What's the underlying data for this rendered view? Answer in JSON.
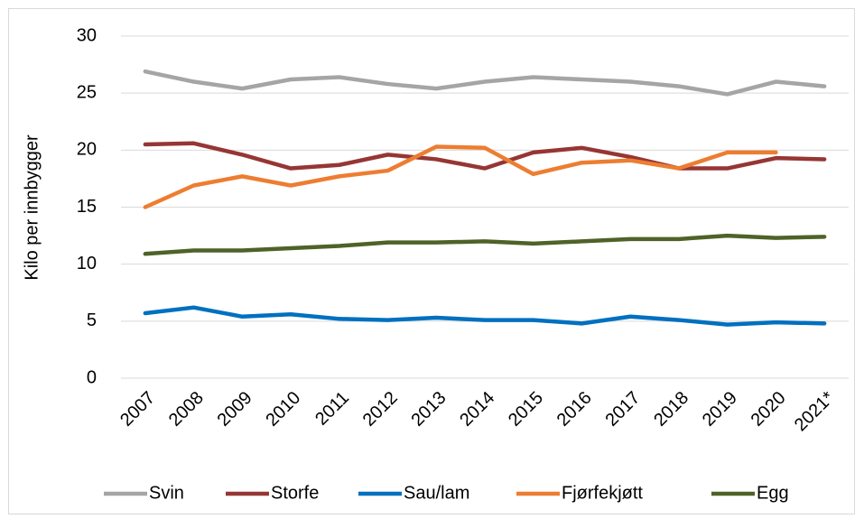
{
  "chart_data": {
    "type": "line",
    "y_label": "Kilo per innbygger",
    "categories": [
      "2007",
      "2008",
      "2009",
      "2010",
      "2011",
      "2012",
      "2013",
      "2014",
      "2015",
      "2016",
      "2017",
      "2018",
      "2019",
      "2020",
      "2021*"
    ],
    "series": [
      {
        "name": "Svin",
        "color": "#a5a5a5",
        "values": [
          26.9,
          26.0,
          25.4,
          26.2,
          26.4,
          25.8,
          25.4,
          26.0,
          26.4,
          26.2,
          26.0,
          25.6,
          24.9,
          26.0,
          25.6
        ]
      },
      {
        "name": "Storfe",
        "color": "#963634",
        "values": [
          20.5,
          20.6,
          19.6,
          18.4,
          18.7,
          19.6,
          19.2,
          18.4,
          19.8,
          20.2,
          19.4,
          18.4,
          18.4,
          19.3,
          19.2
        ]
      },
      {
        "name": "Sau/lam",
        "color": "#0070c0",
        "values": [
          5.7,
          6.2,
          5.4,
          5.6,
          5.2,
          5.1,
          5.3,
          5.1,
          5.1,
          4.8,
          5.4,
          5.1,
          4.7,
          4.9,
          4.8
        ]
      },
      {
        "name": "Fjørfekjøtt",
        "color": "#ed7d31",
        "values": [
          15.0,
          16.9,
          17.7,
          16.9,
          17.7,
          18.2,
          20.3,
          20.2,
          17.9,
          18.9,
          19.1,
          18.4,
          19.8,
          19.8,
          null
        ]
      },
      {
        "name": "Egg",
        "color": "#4f6228",
        "values": [
          10.9,
          11.2,
          11.2,
          11.4,
          11.6,
          11.9,
          11.9,
          12.0,
          11.8,
          12.0,
          12.2,
          12.2,
          12.5,
          12.3,
          12.4
        ]
      }
    ],
    "ylim": [
      0,
      30
    ],
    "yticks": [
      0,
      5,
      10,
      15,
      20,
      25,
      30
    ],
    "grid": true,
    "legend": "bottom"
  }
}
